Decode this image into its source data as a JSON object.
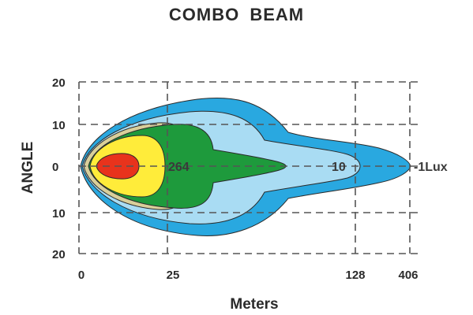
{
  "chart_data": {
    "type": "contour",
    "title": "COMBO BEAM",
    "xlabel": "Meters",
    "ylabel": "ANGLE",
    "x_ticks": [
      "0",
      "25",
      "128",
      "406"
    ],
    "y_ticks": [
      "20",
      "10",
      "0",
      "10",
      "20"
    ],
    "grid": true,
    "contours": [
      {
        "name": "outer",
        "color": "#29a8e0"
      },
      {
        "name": "light-blue",
        "color": "#a9dcf3"
      },
      {
        "name": "tan",
        "color": "#d9cf9a"
      },
      {
        "name": "green",
        "color": "#1e9a3c"
      },
      {
        "name": "yellow",
        "color": "#ffec3a"
      },
      {
        "name": "red",
        "color": "#e8331c"
      }
    ],
    "labels": [
      {
        "text": "264",
        "x": "25"
      },
      {
        "text": "10",
        "x": "128"
      },
      {
        "text": "-1Lux",
        "x": "406"
      }
    ]
  }
}
